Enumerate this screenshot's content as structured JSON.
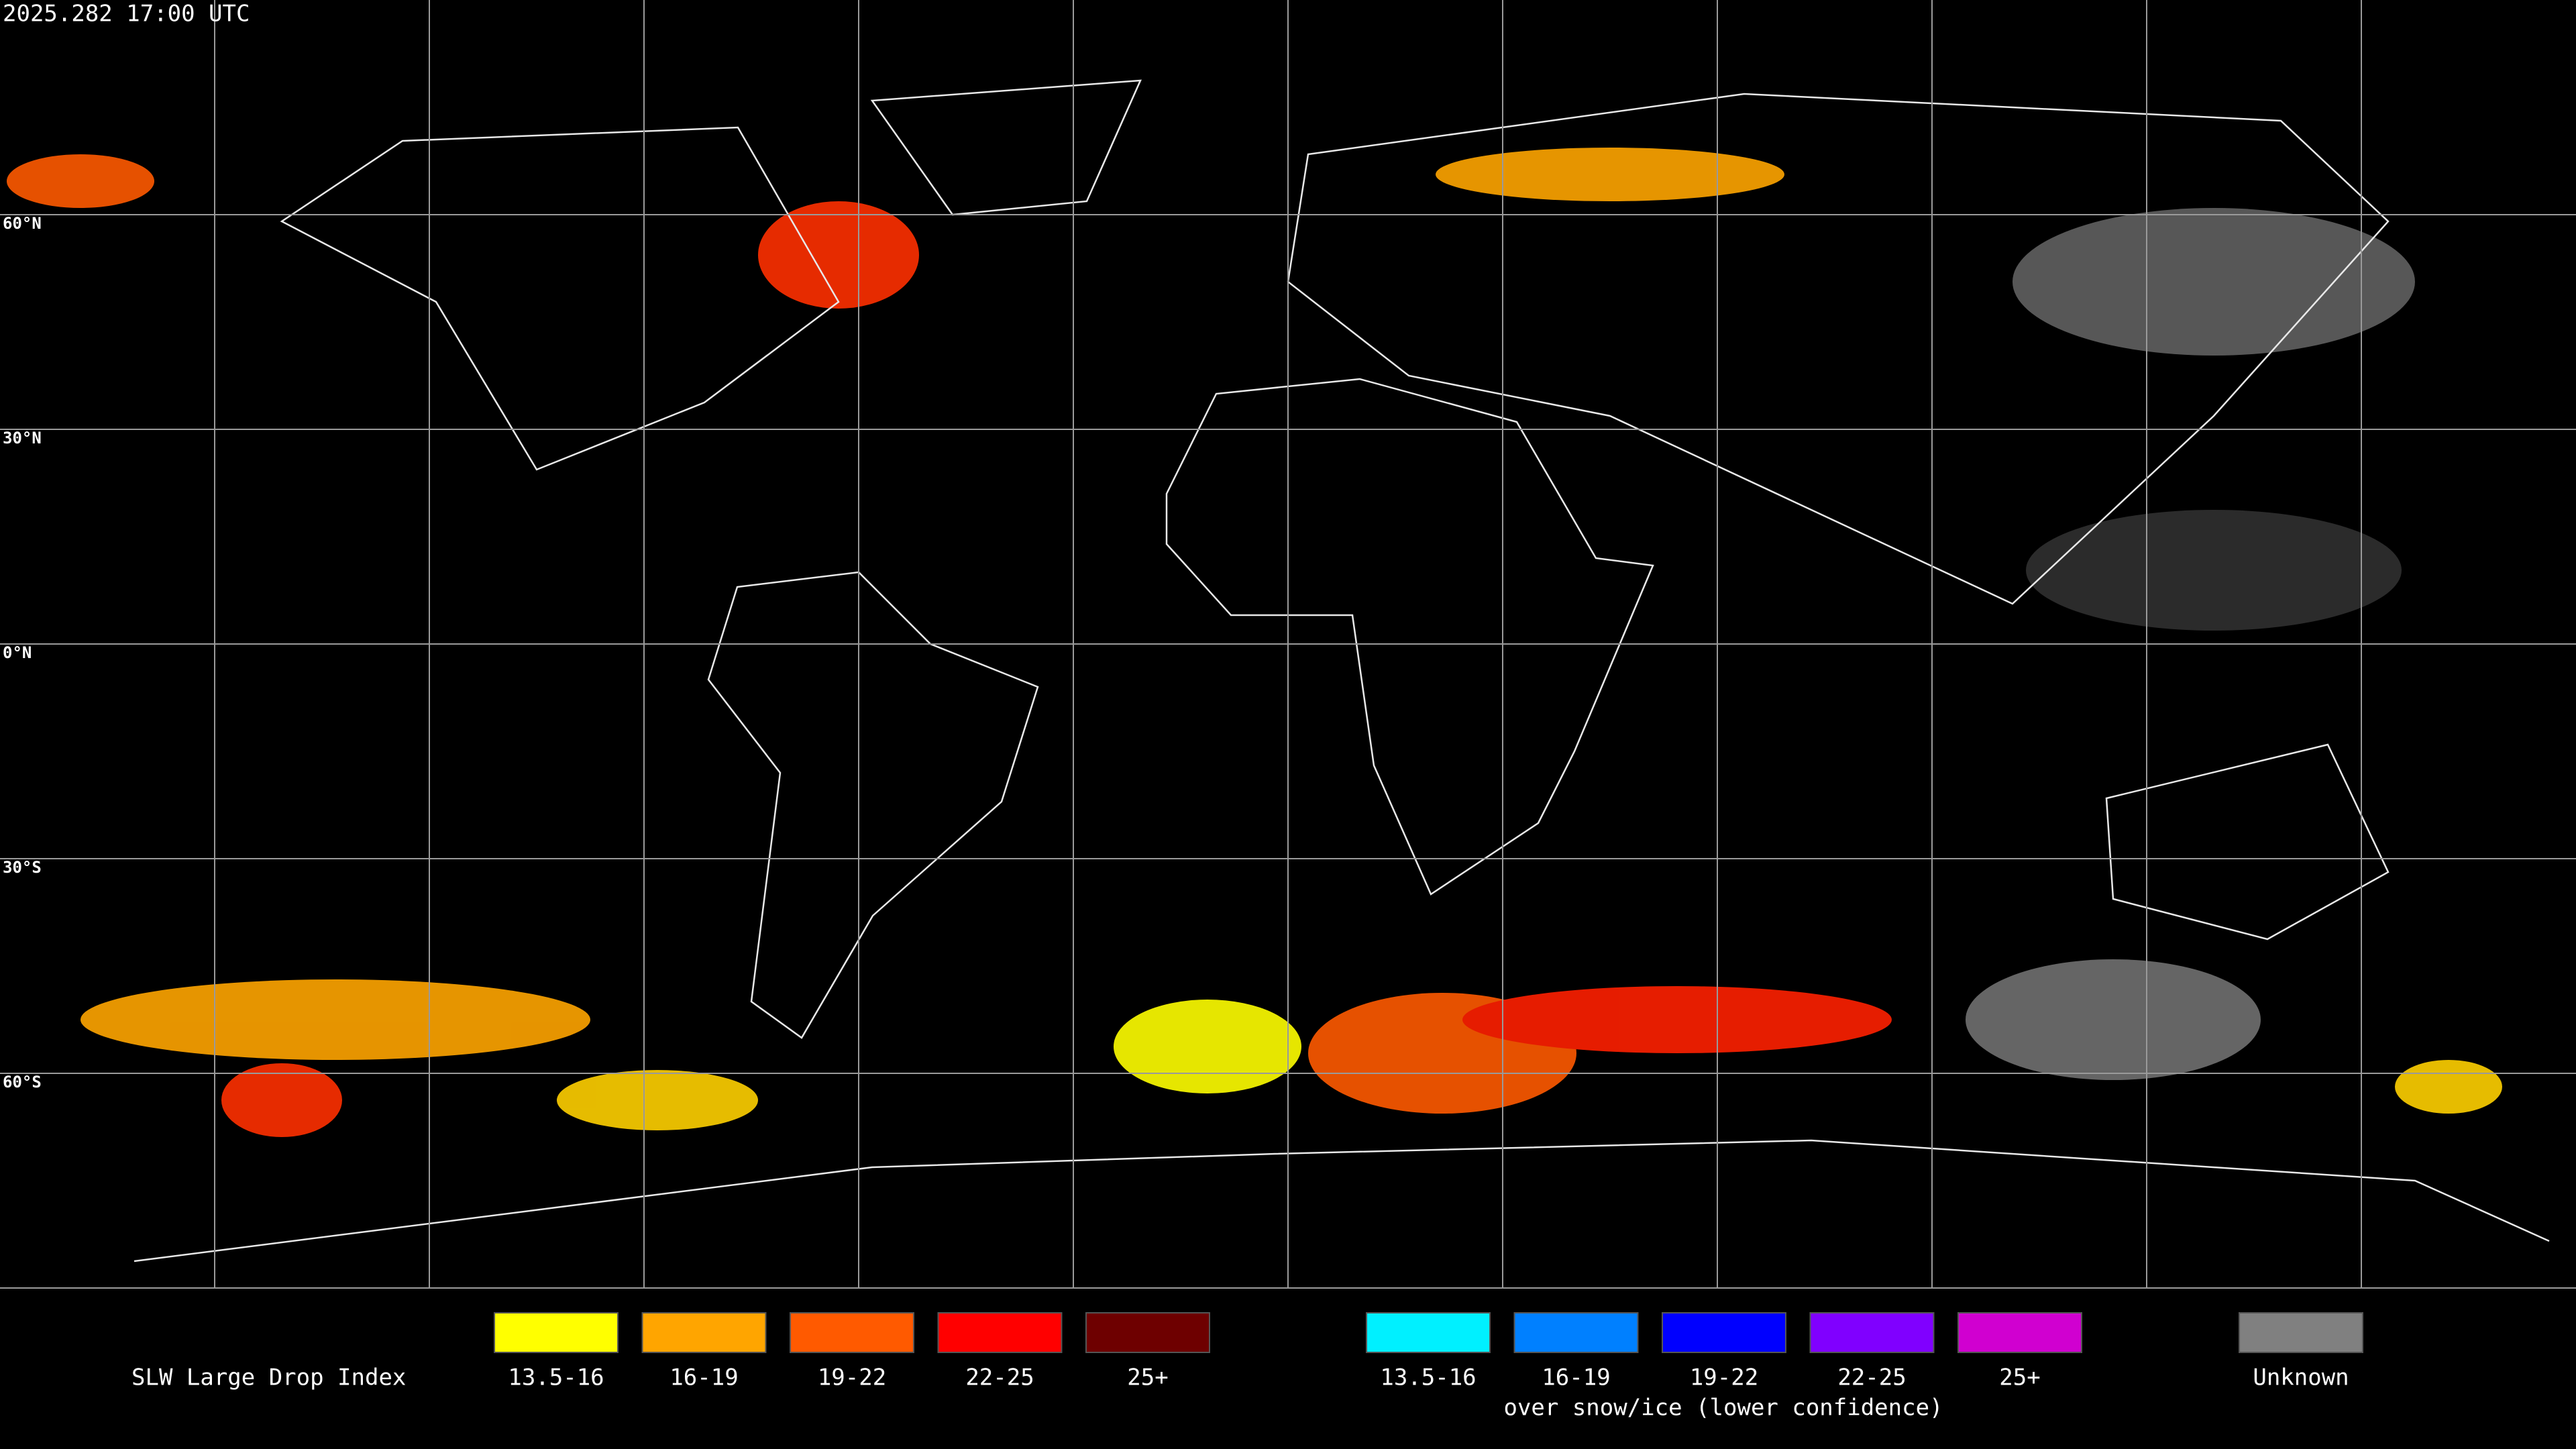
{
  "timestamp": "2025.282 17:00 UTC",
  "grid_labels": [
    "60°N",
    "30°N",
    "0°N",
    "30°S",
    "60°S"
  ],
  "legend": {
    "title": "SLW Large Drop Index",
    "items": [
      {
        "label": "13.5-16",
        "color": "#ffff00"
      },
      {
        "label": "16-19",
        "color": "#ffa500"
      },
      {
        "label": "19-22",
        "color": "#ff5a00"
      },
      {
        "label": "22-25",
        "color": "#ff0000"
      },
      {
        "label": "25+",
        "color": "#6e0000"
      }
    ],
    "snow_items": [
      {
        "label": "13.5-16",
        "color": "#00f0ff"
      },
      {
        "label": "16-19",
        "color": "#0080ff"
      },
      {
        "label": "19-22",
        "color": "#0000ff"
      },
      {
        "label": "22-25",
        "color": "#8000ff"
      },
      {
        "label": "25+",
        "color": "#d000d0"
      }
    ],
    "snow_caption": "over snow/ice (lower confidence)",
    "unknown": {
      "label": "Unknown",
      "color": "#808080"
    }
  }
}
